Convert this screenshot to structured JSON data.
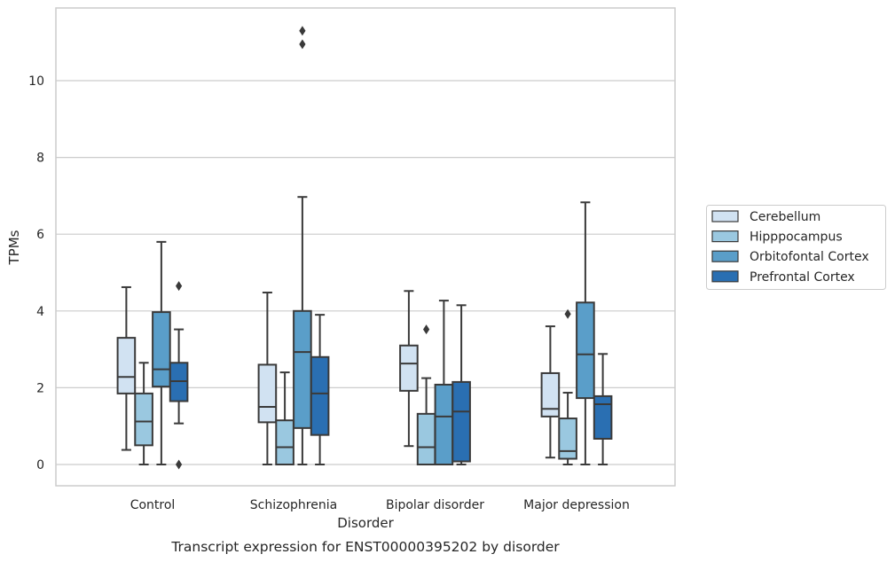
{
  "chart_data": {
    "type": "box",
    "xlabel": "Disorder",
    "ylabel": "TPMs",
    "caption": "Transcript expression for ENST00000395202 by disorder",
    "ylim": [
      -0.55,
      11.9
    ],
    "yticks": [
      0,
      2,
      4,
      6,
      8,
      10
    ],
    "grid": "horizontal",
    "legend_position": "right",
    "categories": [
      "Control",
      "Schizophrenia",
      "Bipolar disorder",
      "Major depression"
    ],
    "series": [
      {
        "name": "Cerebellum",
        "color": "#d1e2f2",
        "boxes": [
          {
            "whislo": 0.38,
            "q1": 1.85,
            "med": 2.28,
            "q3": 3.3,
            "whishi": 4.62,
            "fliers": []
          },
          {
            "whislo": 0.0,
            "q1": 1.1,
            "med": 1.5,
            "q3": 2.6,
            "whishi": 4.48,
            "fliers": []
          },
          {
            "whislo": 0.48,
            "q1": 1.92,
            "med": 2.63,
            "q3": 3.1,
            "whishi": 4.52,
            "fliers": []
          },
          {
            "whislo": 0.18,
            "q1": 1.25,
            "med": 1.45,
            "q3": 2.38,
            "whishi": 3.6,
            "fliers": []
          }
        ]
      },
      {
        "name": "Hipppocampus",
        "color": "#9ac8e0",
        "boxes": [
          {
            "whislo": 0.0,
            "q1": 0.5,
            "med": 1.12,
            "q3": 1.85,
            "whishi": 2.65,
            "fliers": []
          },
          {
            "whislo": 0.0,
            "q1": 0.0,
            "med": 0.45,
            "q3": 1.15,
            "whishi": 2.4,
            "fliers": []
          },
          {
            "whislo": 0.0,
            "q1": 0.0,
            "med": 0.45,
            "q3": 1.32,
            "whishi": 2.25,
            "fliers": [
              3.52
            ]
          },
          {
            "whislo": 0.0,
            "q1": 0.15,
            "med": 0.35,
            "q3": 1.2,
            "whishi": 1.87,
            "fliers": [
              3.92
            ]
          }
        ]
      },
      {
        "name": "Orbitofontal Cortex",
        "color": "#5a9ec9",
        "boxes": [
          {
            "whislo": 0.0,
            "q1": 2.03,
            "med": 2.48,
            "q3": 3.97,
            "whishi": 5.8,
            "fliers": []
          },
          {
            "whislo": 0.0,
            "q1": 0.95,
            "med": 2.93,
            "q3": 4.0,
            "whishi": 6.97,
            "fliers": [
              10.95,
              11.3
            ]
          },
          {
            "whislo": 0.0,
            "q1": 0.0,
            "med": 1.25,
            "q3": 2.08,
            "whishi": 4.27,
            "fliers": []
          },
          {
            "whislo": 0.0,
            "q1": 1.73,
            "med": 2.87,
            "q3": 4.22,
            "whishi": 6.83,
            "fliers": []
          }
        ]
      },
      {
        "name": "Prefrontal Cortex",
        "color": "#2a6fb2",
        "boxes": [
          {
            "whislo": 1.07,
            "q1": 1.65,
            "med": 2.17,
            "q3": 2.65,
            "whishi": 3.52,
            "fliers": [
              4.65,
              0.0
            ]
          },
          {
            "whislo": 0.0,
            "q1": 0.77,
            "med": 1.85,
            "q3": 2.8,
            "whishi": 3.9,
            "fliers": []
          },
          {
            "whislo": 0.0,
            "q1": 0.08,
            "med": 1.38,
            "q3": 2.15,
            "whishi": 4.15,
            "fliers": []
          },
          {
            "whislo": 0.0,
            "q1": 0.67,
            "med": 1.57,
            "q3": 1.78,
            "whishi": 2.88,
            "fliers": []
          }
        ]
      }
    ]
  }
}
